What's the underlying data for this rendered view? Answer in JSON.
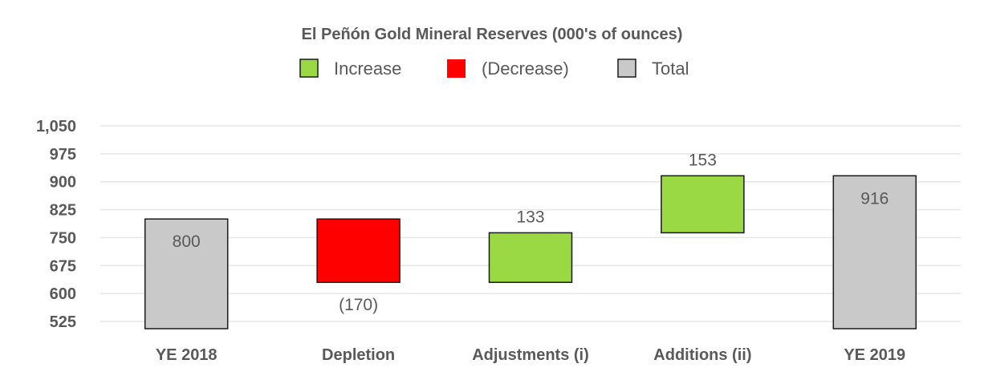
{
  "chart_data": {
    "type": "bar",
    "subtype": "waterfall",
    "title": "El Peñón Gold Mineral Reserves (000's of ounces)",
    "legend": [
      {
        "label": "Increase",
        "color": "#9ad943"
      },
      {
        "label": "(Decrease)",
        "color": "#ff0000"
      },
      {
        "label": "Total",
        "color": "#c9c9c9"
      }
    ],
    "legend_position": "top-center",
    "categories": [
      "YE 2018",
      "Depletion",
      "Adjustments (i)",
      "Additions (ii)",
      "YE 2019"
    ],
    "values": [
      800,
      -170,
      133,
      153,
      916
    ],
    "kinds": [
      "total",
      "decrease",
      "increase",
      "increase",
      "total"
    ],
    "data_labels": [
      "800",
      "(170)",
      "133",
      "153",
      "916"
    ],
    "yticks": [
      "525",
      "600",
      "675",
      "750",
      "825",
      "900",
      "975",
      "1,050"
    ],
    "ylim": [
      525,
      1050
    ],
    "grid": true,
    "colors": {
      "increase": "#9ad943",
      "decrease": "#ff0000",
      "total": "#c9c9c9",
      "outline": "#1a1a1a"
    }
  }
}
